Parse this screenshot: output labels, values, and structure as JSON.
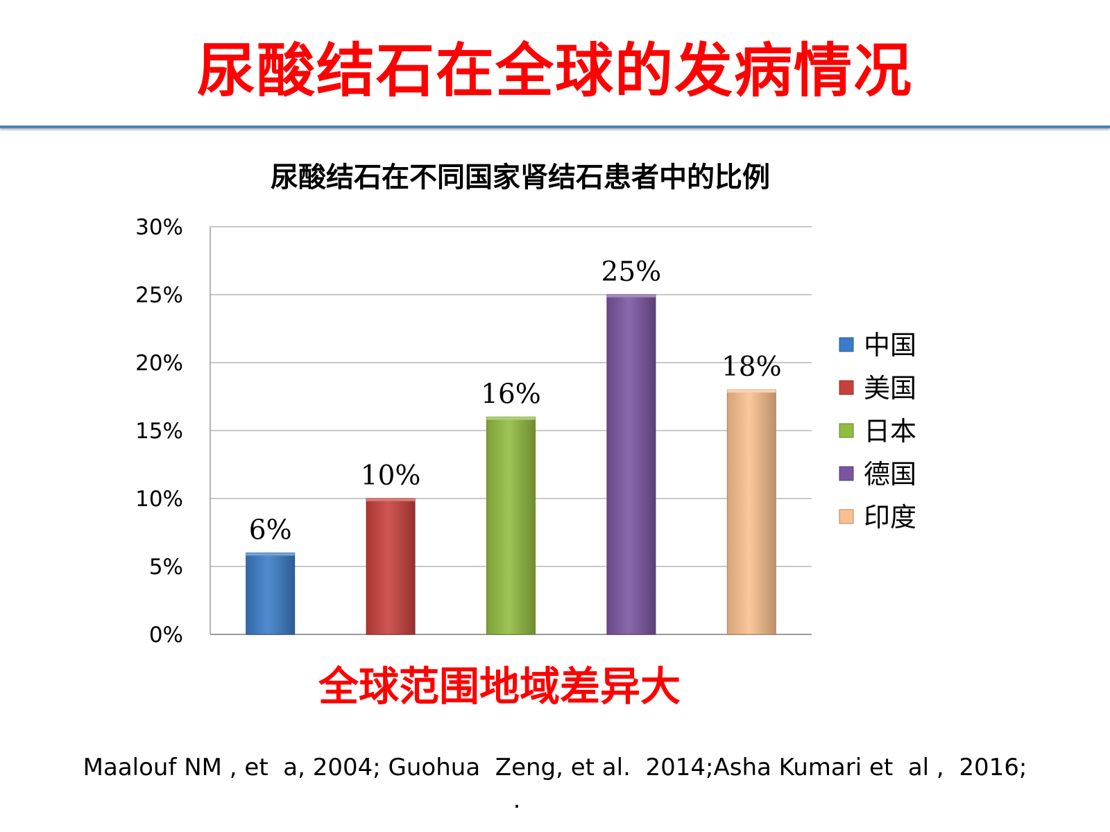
{
  "slide": {
    "title": "尿酸结石在全球的发病情况",
    "summary": "全球范围地域差异大",
    "citation": "Maalouf NM , et  a, 2004; Guohua  Zeng, et al.  2014;Asha Kumari et  al ,  2016;",
    "trailing_mark": "."
  },
  "chart_data": {
    "type": "bar",
    "title": "尿酸结石在不同国家肾结石患者中的比例",
    "categories": [
      "中国",
      "美国",
      "日本",
      "德国",
      "印度"
    ],
    "values": [
      6,
      10,
      16,
      25,
      18
    ],
    "data_labels": [
      "6%",
      "10%",
      "16%",
      "25%",
      "18%"
    ],
    "colors": [
      "#3a7cc7",
      "#c8403c",
      "#92bc3f",
      "#7a559f",
      "#f9c08e"
    ],
    "ylim": [
      0,
      30
    ],
    "yticks": [
      0,
      5,
      10,
      15,
      20,
      25,
      30
    ],
    "ytick_labels": [
      "0%",
      "5%",
      "10%",
      "15%",
      "20%",
      "25%",
      "30%"
    ],
    "grid": true,
    "legend": {
      "position": "right",
      "entries": [
        "中国",
        "美国",
        "日本",
        "德国",
        "印度"
      ]
    }
  }
}
